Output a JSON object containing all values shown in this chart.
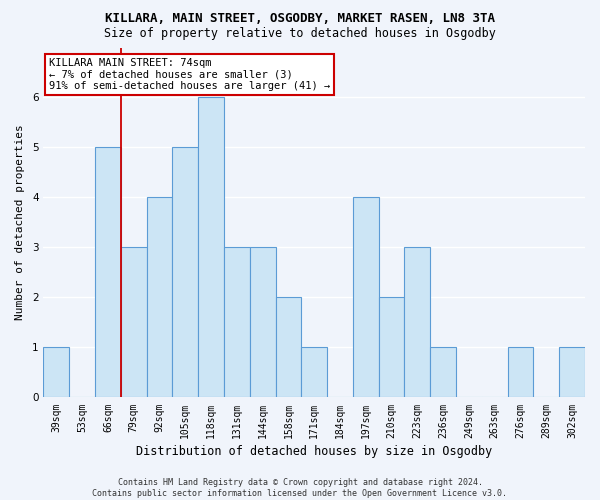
{
  "title1": "KILLARA, MAIN STREET, OSGODBY, MARKET RASEN, LN8 3TA",
  "title2": "Size of property relative to detached houses in Osgodby",
  "xlabel": "Distribution of detached houses by size in Osgodby",
  "ylabel": "Number of detached properties",
  "categories": [
    "39sqm",
    "53sqm",
    "66sqm",
    "79sqm",
    "92sqm",
    "105sqm",
    "118sqm",
    "131sqm",
    "144sqm",
    "158sqm",
    "171sqm",
    "184sqm",
    "197sqm",
    "210sqm",
    "223sqm",
    "236sqm",
    "249sqm",
    "263sqm",
    "276sqm",
    "289sqm",
    "302sqm"
  ],
  "values": [
    1,
    0,
    5,
    3,
    4,
    5,
    6,
    3,
    3,
    2,
    1,
    0,
    4,
    2,
    3,
    1,
    0,
    0,
    1,
    0,
    1
  ],
  "bar_color": "#cce5f5",
  "bar_edge_color": "#5b9bd5",
  "highlight_index": 2,
  "highlight_line_color": "#cc0000",
  "annotation_text": "KILLARA MAIN STREET: 74sqm\n← 7% of detached houses are smaller (3)\n91% of semi-detached houses are larger (41) →",
  "annotation_box_color": "#ffffff",
  "annotation_box_edge": "#cc0000",
  "footer": "Contains HM Land Registry data © Crown copyright and database right 2024.\nContains public sector information licensed under the Open Government Licence v3.0.",
  "ylim": [
    0,
    7
  ],
  "yticks": [
    0,
    1,
    2,
    3,
    4,
    5,
    6
  ],
  "bg_color": "#f0f4fb",
  "plot_bg_color": "#f0f4fb",
  "grid_color": "#ffffff",
  "title1_fontsize": 9,
  "title2_fontsize": 8.5,
  "xlabel_fontsize": 8.5,
  "ylabel_fontsize": 8,
  "tick_fontsize": 7,
  "footer_fontsize": 6,
  "annot_fontsize": 7.5
}
